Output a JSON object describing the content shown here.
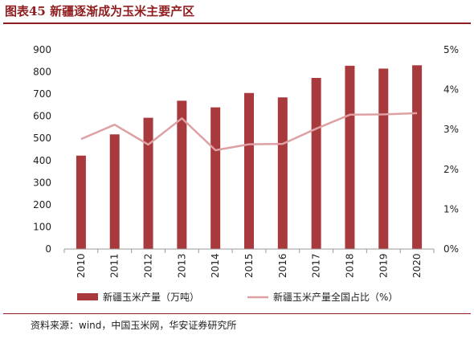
{
  "figure_title": "图表45  新疆逐渐成为玉米主要产区",
  "source": "资料来源：wind，中国玉米网，华安证券研究所",
  "colors": {
    "accent": "#8f1d1f",
    "bar": "#a8393c",
    "line": "#dea0a2",
    "axis": "#999999"
  },
  "chart_data": {
    "type": "bar",
    "categories": [
      "2010",
      "2011",
      "2012",
      "2013",
      "2014",
      "2015",
      "2016",
      "2017",
      "2018",
      "2019",
      "2020"
    ],
    "series": [
      {
        "name": "新疆玉米产量（万吨）",
        "type": "bar",
        "axis": "left",
        "values": [
          422,
          518,
          593,
          670,
          640,
          705,
          685,
          773,
          828,
          815,
          830
        ]
      },
      {
        "name": "新疆玉米产量全国占比（%）",
        "type": "line",
        "axis": "right",
        "values": [
          2.76,
          3.12,
          2.62,
          3.28,
          2.48,
          2.63,
          2.64,
          3.02,
          3.37,
          3.38,
          3.41
        ]
      }
    ],
    "ylim": [
      0,
      900
    ],
    "yticks": [
      "0",
      "100",
      "200",
      "300",
      "400",
      "500",
      "600",
      "700",
      "800",
      "900"
    ],
    "ylim_right": [
      0,
      5
    ],
    "yticks_right": [
      "0%",
      "1%",
      "2%",
      "3%",
      "4%",
      "5%"
    ],
    "grid": false,
    "legend": "bottom"
  }
}
